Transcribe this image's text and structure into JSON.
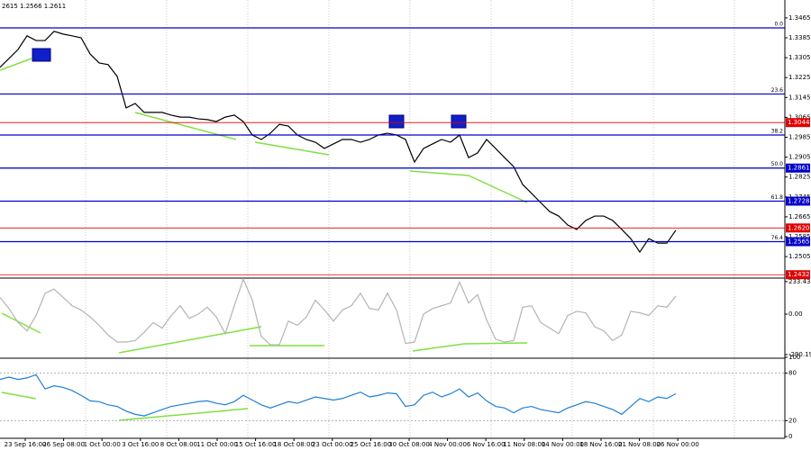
{
  "chart_data": [
    {
      "type": "line",
      "header": "2615 1.2566 1.2611",
      "color": "#000000",
      "values": [
        1.3266,
        1.3302,
        1.3338,
        1.3393,
        1.3374,
        1.3374,
        1.3411,
        1.34,
        1.3393,
        1.3385,
        1.332,
        1.3284,
        1.3277,
        1.323,
        1.3103,
        1.3121,
        1.3085,
        1.3085,
        1.3085,
        1.3074,
        1.3066,
        1.3066,
        1.3059,
        1.3056,
        1.3048,
        1.3066,
        1.3074,
        1.3048,
        1.2994,
        1.2976,
        1.3001,
        1.3037,
        1.303,
        1.2994,
        1.2976,
        1.2965,
        1.294,
        1.2958,
        1.2976,
        1.2976,
        1.2965,
        1.2976,
        1.2994,
        1.3001,
        1.2994,
        1.2976,
        1.2885,
        1.294,
        1.2958,
        1.2976,
        1.2965,
        1.2994,
        1.2903,
        1.2922,
        1.2976,
        1.294,
        1.2903,
        1.2867,
        1.2795,
        1.2759,
        1.2722,
        1.2686,
        1.2668,
        1.2632,
        1.2614,
        1.265,
        1.2668,
        1.2668,
        1.265,
        1.2614,
        1.2577,
        1.2523,
        1.2577,
        1.2559,
        1.2559,
        1.2611
      ],
      "ylim": [
        1.2422,
        1.3519
      ],
      "yticks": [
        1.3465,
        1.3385,
        1.3305,
        1.3225,
        1.3145,
        1.3065,
        {
          "value": 1.2985,
          "label": "1.2985"
        },
        1.2905,
        1.2825,
        1.2745,
        1.2665,
        1.2585,
        1.2505
      ],
      "levels": [
        {
          "ratio": "0.0",
          "price": 1.3425
        },
        {
          "ratio": "23.6",
          "price": 1.3159
        },
        {
          "ratio": "38.2",
          "price": 1.2994
        },
        {
          "ratio": "50.0",
          "price": 1.2861
        },
        {
          "ratio": "61.8",
          "price": 1.2728
        },
        {
          "ratio": "76.4",
          "price": 1.2565
        }
      ],
      "level_color": "#0000c8",
      "price_tags": [
        {
          "price": 1.3044,
          "color": "#e00000"
        },
        {
          "price": 1.2861,
          "color": "#0000c8"
        },
        {
          "price": 1.2728,
          "color": "#0000c8"
        },
        {
          "price": 1.262,
          "label": "1.2620",
          "color": "#e00000"
        },
        {
          "price": 1.2565,
          "color": "#0000c8"
        },
        {
          "price": 1.2432,
          "color": "#e00000"
        }
      ],
      "x_labels": [
        "23 Sep 16:00",
        "26 Sep 08:00",
        "1 Oct 00:00",
        "3 Oct 16:00",
        "8 Oct 08:00",
        "11 Oct 00:00",
        "15 Oct 16:00",
        "18 Oct 08:00",
        "23 Oct 00:00",
        "25 Oct 16:00",
        "30 Oct 08:00",
        "4 Nov 00:00",
        "6 Nov 16:00",
        "11 Nov 08:00",
        "14 Nov 00:00",
        "18 Nov 16:00",
        "21 Nov 08:00",
        "26 Nov 00:00"
      ]
    },
    {
      "type": "line",
      "color": "#b4b4b4",
      "values": [
        120,
        40,
        -60,
        -120,
        -10,
        150,
        180,
        120,
        60,
        30,
        -20,
        -80,
        -150,
        -200,
        -200,
        -190,
        -130,
        -60,
        -100,
        -10,
        60,
        -30,
        0,
        50,
        -20,
        -140,
        60,
        250,
        100,
        -160,
        -220,
        -220,
        -50,
        -80,
        -20,
        100,
        30,
        -50,
        30,
        60,
        150,
        40,
        30,
        150,
        30,
        -210,
        -200,
        0,
        40,
        60,
        80,
        230,
        80,
        140,
        -40,
        -180,
        -200,
        -190,
        50,
        60,
        -60,
        -100,
        -140,
        -10,
        20,
        10,
        -90,
        -120,
        -190,
        -150,
        20,
        10,
        -10,
        60,
        50,
        130
      ],
      "ylim": [
        -316,
        252
      ],
      "yticks": [
        233.4378,
        {
          "value": 0,
          "label": "0.00"
        },
        -290.198
      ]
    },
    {
      "type": "line",
      "color": "#1e7fd8",
      "values": [
        72,
        75,
        72,
        74,
        78,
        60,
        64,
        62,
        58,
        52,
        45,
        44,
        40,
        38,
        32,
        28,
        26,
        30,
        34,
        38,
        40,
        42,
        44,
        45,
        42,
        40,
        44,
        52,
        46,
        40,
        36,
        40,
        44,
        42,
        46,
        50,
        48,
        46,
        48,
        52,
        56,
        50,
        52,
        55,
        54,
        38,
        40,
        52,
        56,
        50,
        54,
        60,
        50,
        55,
        45,
        38,
        36,
        30,
        36,
        38,
        34,
        32,
        30,
        36,
        40,
        44,
        42,
        38,
        34,
        28,
        38,
        48,
        44,
        50,
        48,
        54
      ],
      "ylim": [
        0,
        100
      ],
      "yticks": [
        100,
        80,
        20,
        0
      ],
      "grid": true
    }
  ]
}
